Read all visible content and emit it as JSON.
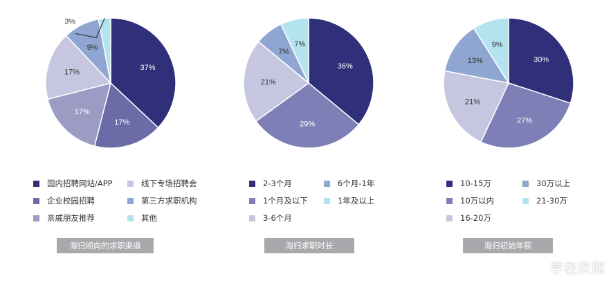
{
  "chart_data": [
    {
      "type": "pie",
      "title": "海归倾向的求职渠道",
      "labels": [
        "国内招聘网站/APP",
        "线下专场招聘会",
        "企业校园招聘",
        "第三方求职机构",
        "亲戚朋友推荐",
        "其他"
      ],
      "slices": [
        {
          "label": "国内招聘网站/APP",
          "value": 37,
          "text": "37%",
          "color": "#2f2f7a"
        },
        {
          "label": "企业校园招聘",
          "value": 17,
          "text": "17%",
          "color": "#6b6ba8"
        },
        {
          "label": "亲戚朋友推荐",
          "value": 17,
          "text": "17%",
          "color": "#9b9bc4"
        },
        {
          "label": "线下专场招聘会",
          "value": 17,
          "text": "17%",
          "color": "#c6c6e0"
        },
        {
          "label": "第三方求职机构",
          "value": 9,
          "text": "9%",
          "color": "#8fa6d2"
        },
        {
          "label": "其他",
          "value": 3,
          "text": "3%",
          "color": "#b4e3f0"
        }
      ],
      "legend": [
        {
          "label": "国内招聘网站/APP",
          "color": "#2f2f7a"
        },
        {
          "label": "线下专场招聘会",
          "color": "#c6c6e0"
        },
        {
          "label": "企业校园招聘",
          "color": "#6b6ba8"
        },
        {
          "label": "第三方求职机构",
          "color": "#8fa6d2"
        },
        {
          "label": "亲戚朋友推荐",
          "color": "#9b9bc4"
        },
        {
          "label": "其他",
          "color": "#b4e3f0"
        }
      ]
    },
    {
      "type": "pie",
      "title": "海归求职时长",
      "labels": [
        "2-3个月",
        "6个月-1年",
        "1个月及以下",
        "1年及以上",
        "3-6个月"
      ],
      "slices": [
        {
          "label": "2-3个月",
          "value": 36,
          "text": "36%",
          "color": "#2f2f7a"
        },
        {
          "label": "1个月及以下",
          "value": 29,
          "text": "29%",
          "color": "#7f7fb8"
        },
        {
          "label": "3-6个月",
          "value": 21,
          "text": "21%",
          "color": "#c6c6e0"
        },
        {
          "label": "6个月-1年",
          "value": 7,
          "text": "7%",
          "color": "#8fa6d2"
        },
        {
          "label": "1年及以上",
          "value": 7,
          "text": "7%",
          "color": "#b4e3f0"
        }
      ],
      "legend": [
        {
          "label": "2-3个月",
          "color": "#2f2f7a"
        },
        {
          "label": "6个月-1年",
          "color": "#8fa6d2"
        },
        {
          "label": "1个月及以下",
          "color": "#7f7fb8"
        },
        {
          "label": "1年及以上",
          "color": "#b4e3f0"
        },
        {
          "label": "3-6个月",
          "color": "#c6c6e0"
        }
      ]
    },
    {
      "type": "pie",
      "title": "海归初始年薪",
      "labels": [
        "10-15万",
        "30万以上",
        "10万以内",
        "21-30万",
        "16-20万"
      ],
      "slices": [
        {
          "label": "10-15万",
          "value": 30,
          "text": "30%",
          "color": "#2f2f7a"
        },
        {
          "label": "10万以内",
          "value": 27,
          "text": "27%",
          "color": "#7f7fb8"
        },
        {
          "label": "16-20万",
          "value": 21,
          "text": "21%",
          "color": "#c6c6e0"
        },
        {
          "label": "30万以上",
          "value": 13,
          "text": "13%",
          "color": "#8fa6d2"
        },
        {
          "label": "21-30万",
          "value": 9,
          "text": "9%",
          "color": "#b4e3f0"
        }
      ],
      "legend": [
        {
          "label": "10-15万",
          "color": "#2f2f7a"
        },
        {
          "label": "30万以上",
          "color": "#8fa6d2"
        },
        {
          "label": "10万以内",
          "color": "#7f7fb8"
        },
        {
          "label": "21-30万",
          "color": "#b4e3f0"
        },
        {
          "label": "16-20万",
          "color": "#c6c6e0"
        }
      ]
    }
  ],
  "watermark": {
    "text": "学在庆熙",
    "icon": "wechat-icon"
  }
}
